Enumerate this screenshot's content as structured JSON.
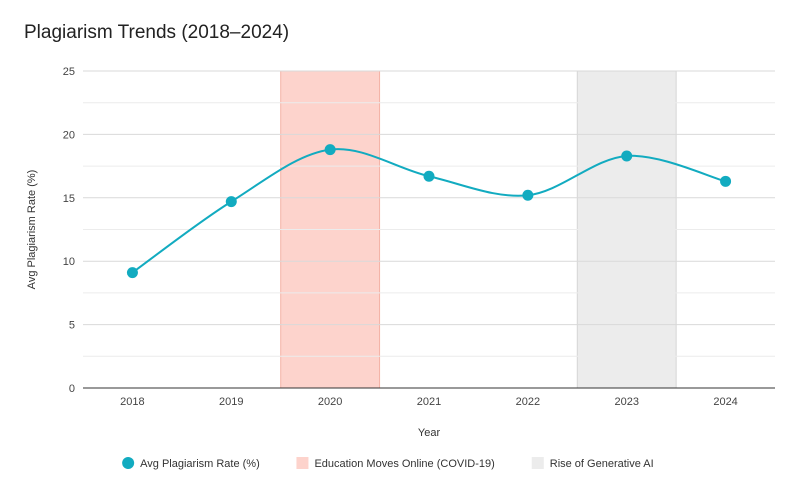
{
  "chart_data": {
    "type": "line",
    "title": "Plagiarism Trends (2018–2024)",
    "xlabel": "Year",
    "ylabel": "Avg Plagiarism Rate (%)",
    "categories": [
      "2018",
      "2019",
      "2020",
      "2021",
      "2022",
      "2023",
      "2024"
    ],
    "ylim": [
      0,
      25
    ],
    "yticks": [
      "0",
      "5",
      "10",
      "15",
      "20",
      "25"
    ],
    "grid": true,
    "legend_position": "bottom",
    "series": [
      {
        "name": "Avg Plagiarism Rate (%)",
        "values": [
          9.1,
          14.7,
          18.8,
          16.7,
          15.2,
          18.3,
          16.3
        ],
        "color": "#12abc0",
        "smooth": true
      }
    ],
    "highlight_bands": [
      {
        "name": "Education Moves Online (COVID-19)",
        "category": "2020",
        "fill": "#fdd3cc",
        "stroke": "#f4b1a5"
      },
      {
        "name": "Rise of Generative AI",
        "category": "2023",
        "fill": "#ececec",
        "stroke": "#d6d6d6"
      }
    ]
  }
}
